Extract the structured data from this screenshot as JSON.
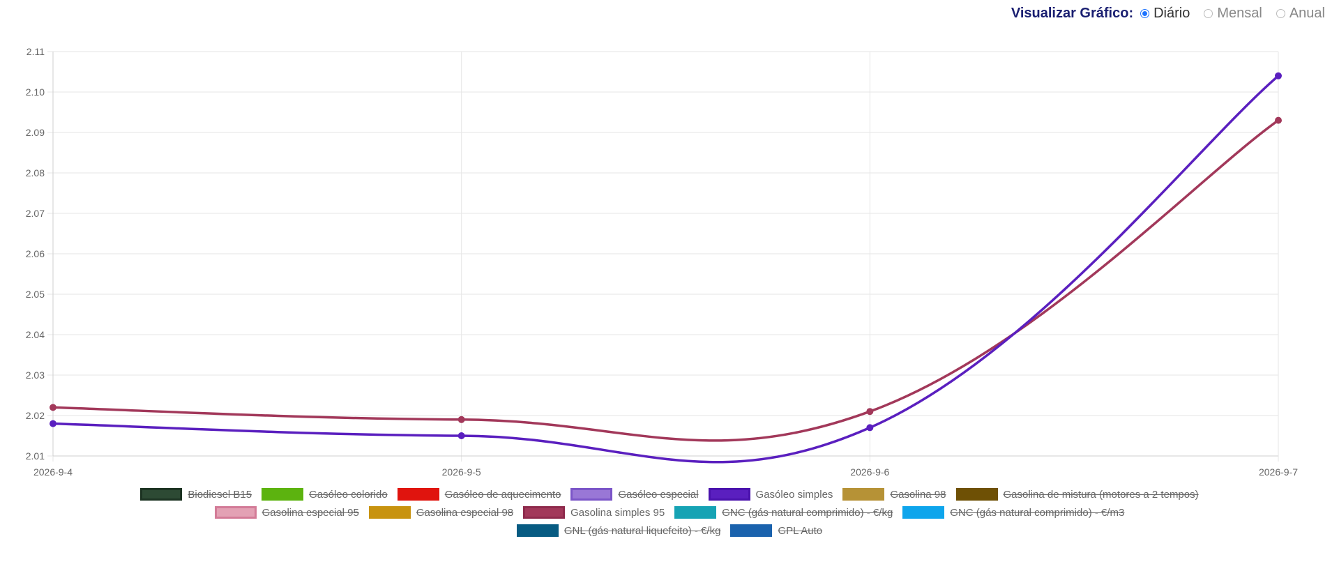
{
  "view_toggle": {
    "label": "Visualizar Gráfico:",
    "options": [
      {
        "label": "Diário",
        "selected": true
      },
      {
        "label": "Mensal",
        "selected": false
      },
      {
        "label": "Anual",
        "selected": false
      }
    ]
  },
  "chart_data": {
    "type": "line",
    "title": "",
    "xlabel": "",
    "ylabel": "",
    "x": [
      "2026-9-4",
      "2026-9-5",
      "2026-9-6",
      "2026-9-7"
    ],
    "ylim": [
      2.01,
      2.11
    ],
    "yticks": [
      "2.11",
      "2.10",
      "2.09",
      "2.08",
      "2.07",
      "2.06",
      "2.05",
      "2.04",
      "2.03",
      "2.02",
      "2.01"
    ],
    "grid": true,
    "legend_position": "bottom",
    "series": [
      {
        "name": "Gasóleo simples",
        "color": "#5a1fbf",
        "values": [
          2.018,
          2.015,
          2.017,
          2.104
        ]
      },
      {
        "name": "Gasolina simples 95",
        "color": "#a2385a",
        "values": [
          2.022,
          2.019,
          2.021,
          2.093
        ]
      }
    ]
  },
  "legend": {
    "rows": [
      [
        {
          "label": "Biodiesel B15",
          "fill": "#2d4a34",
          "border": "#1c3322",
          "hidden": true
        },
        {
          "label": "Gasóleo colorido",
          "fill": "#5cb30f",
          "border": "#5cb30f",
          "hidden": true
        },
        {
          "label": "Gasóleo de aquecimento",
          "fill": "#e0140e",
          "border": "#e0140e",
          "hidden": true
        },
        {
          "label": "Gasóleo especial",
          "fill": "#9977d6",
          "border": "#7b55c8",
          "hidden": true
        },
        {
          "label": "Gasóleo simples",
          "fill": "#5a1fbf",
          "border": "#4a12ad",
          "hidden": false
        },
        {
          "label": "Gasolina 98",
          "fill": "#b69236",
          "border": "#b69236",
          "hidden": true
        },
        {
          "label": "Gasolina de mistura (motores a 2 tempos)",
          "fill": "#6e5005",
          "border": "#6e5005",
          "hidden": true
        }
      ],
      [
        {
          "label": "Gasolina especial 95",
          "fill": "#e3a1b4",
          "border": "#d37b97",
          "hidden": true
        },
        {
          "label": "Gasolina especial 98",
          "fill": "#c8930f",
          "border": "#c8930f",
          "hidden": true
        },
        {
          "label": "Gasolina simples 95",
          "fill": "#a2385a",
          "border": "#8e2a4c",
          "hidden": false
        },
        {
          "label": "GNC (gás natural comprimido) - €/kg",
          "fill": "#16a3b4",
          "border": "#16a3b4",
          "hidden": true
        },
        {
          "label": "GNC (gás natural comprimido) - €/m3",
          "fill": "#0ea5ec",
          "border": "#0ea5ec",
          "hidden": true
        }
      ],
      [
        {
          "label": "GNL (gás natural liquefeito) - €/kg",
          "fill": "#075b82",
          "border": "#075b82",
          "hidden": true
        },
        {
          "label": "GPL Auto",
          "fill": "#1a62ad",
          "border": "#1a62ad",
          "hidden": true
        }
      ]
    ]
  }
}
